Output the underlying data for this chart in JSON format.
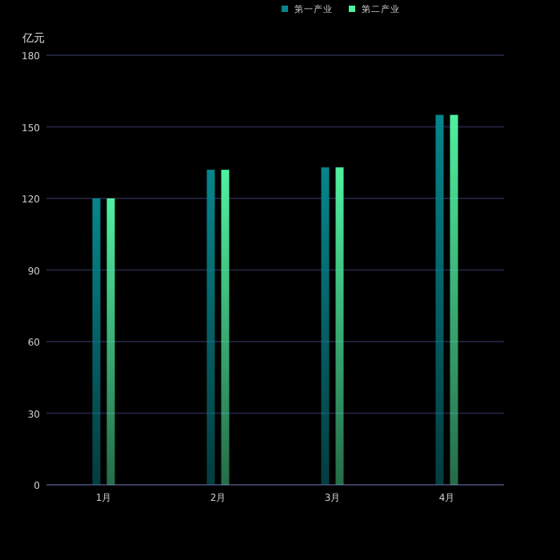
{
  "chart_data": {
    "type": "bar",
    "ylabel": "亿元",
    "categories": [
      "1月",
      "2月",
      "3月",
      "4月"
    ],
    "series": [
      {
        "name": "第一产业",
        "color": "#06858c",
        "values": [
          120,
          132,
          133,
          155
        ]
      },
      {
        "name": "第二产业",
        "color": "#50f0a0",
        "values": [
          120,
          132,
          133,
          155
        ]
      }
    ],
    "ylim": [
      0,
      180
    ],
    "yticks": [
      0,
      30,
      60,
      90,
      120,
      150,
      180
    ],
    "grid": "y",
    "legend": "top right"
  }
}
